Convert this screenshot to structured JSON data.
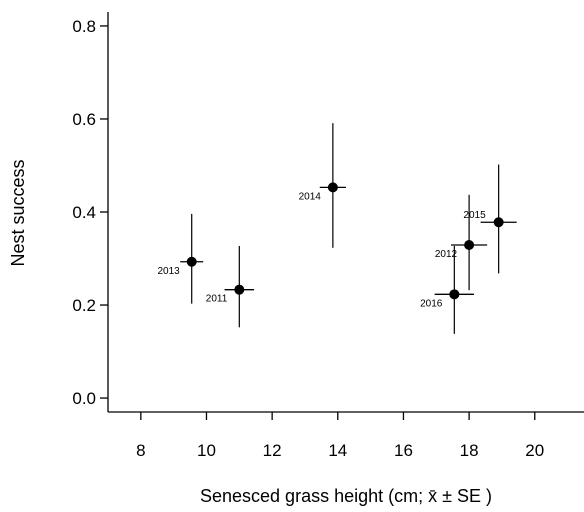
{
  "chart_data": {
    "type": "scatter",
    "xlabel": "Senesced grass height (cm; x̄ ± SE )",
    "ylabel": "Nest success",
    "xlim": [
      7,
      21.5
    ],
    "ylim": [
      -0.03,
      0.83
    ],
    "xticks": [
      8,
      10,
      12,
      14,
      16,
      18,
      20
    ],
    "yticks": [
      0.0,
      0.2,
      0.4,
      0.6,
      0.8
    ],
    "ytick_labels": [
      "0.0",
      "0.2",
      "0.4",
      "0.6",
      "0.8"
    ],
    "grid": false,
    "points": [
      {
        "label": "2013",
        "x": 9.55,
        "y": 0.293,
        "x_err": 0.35,
        "y_low": 0.203,
        "y_high": 0.396,
        "label_side": "left"
      },
      {
        "label": "2011",
        "x": 11.0,
        "y": 0.233,
        "x_err": 0.45,
        "y_low": 0.152,
        "y_high": 0.327,
        "label_side": "left"
      },
      {
        "label": "2014",
        "x": 13.85,
        "y": 0.453,
        "x_err": 0.4,
        "y_low": 0.323,
        "y_high": 0.591,
        "label_side": "left"
      },
      {
        "label": "2016",
        "x": 17.55,
        "y": 0.223,
        "x_err": 0.6,
        "y_low": 0.138,
        "y_high": 0.327,
        "label_side": "left"
      },
      {
        "label": "2012",
        "x": 18.0,
        "y": 0.329,
        "x_err": 0.55,
        "y_low": 0.232,
        "y_high": 0.437,
        "label_side": "left"
      },
      {
        "label": "2015",
        "x": 18.9,
        "y": 0.378,
        "x_err": 0.55,
        "y_low": 0.268,
        "y_high": 0.502,
        "label_side": "above-left"
      }
    ]
  }
}
